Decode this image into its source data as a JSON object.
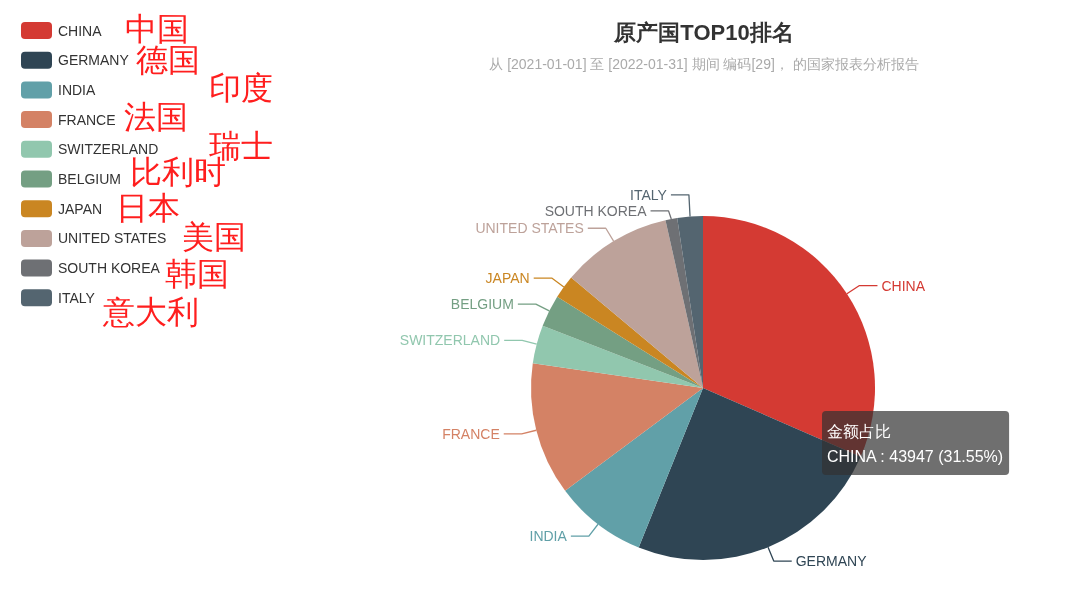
{
  "chart_data": {
    "type": "pie",
    "title": "原产国TOP10排名",
    "subtitle": "从 [2021-01-01] 至 [2022-01-31] 期间 编码[29]， 的国家报表分析报告",
    "categories": [
      "CHINA",
      "GERMANY",
      "INDIA",
      "FRANCE",
      "SWITZERLAND",
      "BELGIUM",
      "JAPAN",
      "UNITED STATES",
      "SOUTH KOREA",
      "ITALY"
    ],
    "values": [
      31.55,
      24.55,
      8.7,
      12.5,
      3.6,
      3.0,
      2.2,
      10.4,
      1.1,
      2.4
    ],
    "colors": [
      "#d43a33",
      "#2f4554",
      "#61a0a8",
      "#d48265",
      "#91c7ae",
      "#749f83",
      "#ca8622",
      "#bda29a",
      "#6e7074",
      "#546570"
    ],
    "legend": "top left",
    "annotations": [
      "中国",
      "德国",
      "印度",
      "法国",
      "瑞士",
      "比利时",
      "日本",
      "美国",
      "韩国",
      "意大利",
      "金额占比",
      "CHINA : 43947 (31.55%)"
    ]
  }
}
